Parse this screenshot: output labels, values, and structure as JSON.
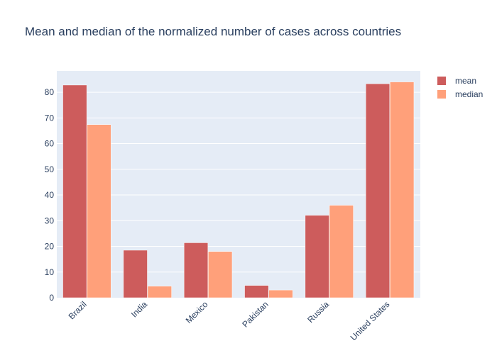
{
  "chart_data": {
    "type": "bar",
    "title": "Mean and median of the normalized number of cases across countries",
    "xlabel": "",
    "ylabel": "",
    "categories": [
      "Brazil",
      "India",
      "Mexico",
      "Pakistan",
      "Russia",
      "United States"
    ],
    "series": [
      {
        "name": "mean",
        "values": [
          82.8,
          18.5,
          21.4,
          4.8,
          32.1,
          83.3
        ],
        "color": "#cd5c5c"
      },
      {
        "name": "median",
        "values": [
          67.4,
          4.5,
          18.0,
          3.0,
          36.0,
          84.0
        ],
        "color": "#ffa07a"
      }
    ],
    "ylim": [
      0,
      88.3
    ],
    "yticks": [
      0,
      10,
      20,
      30,
      40,
      50,
      60,
      70,
      80
    ],
    "grid": true,
    "legend": "top-right",
    "plot_background": "#e5ecf6",
    "text_color": "#2a3f5f"
  }
}
